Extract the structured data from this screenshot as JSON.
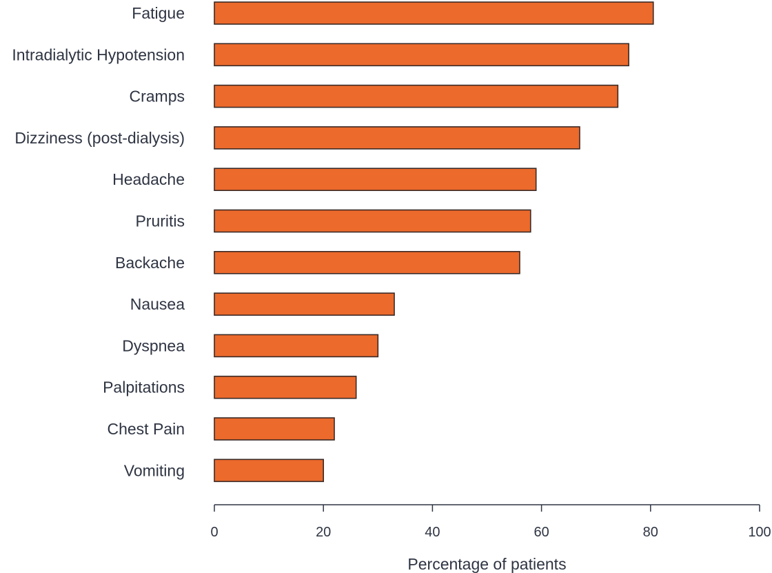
{
  "chart_data": {
    "type": "bar",
    "orientation": "horizontal",
    "categories": [
      "Fatigue",
      "Intradialytic Hypotension",
      "Cramps",
      "Dizziness (post-dialysis)",
      "Headache",
      "Pruritis",
      "Backache",
      "Nausea",
      "Dyspnea",
      "Palpitations",
      "Chest Pain",
      "Vomiting"
    ],
    "values": [
      80.5,
      76,
      74,
      67,
      59,
      58,
      56,
      33,
      30,
      26,
      22,
      20
    ],
    "xlabel": "Percentage of patients",
    "ylabel": "",
    "xlim": [
      0,
      100
    ],
    "xticks": [
      0,
      20,
      40,
      60,
      80,
      100
    ],
    "grid": false,
    "legend": "none",
    "bar_color": "#ec6a2c",
    "bar_edge_color": "#3a2a26",
    "text_color": "#2e3442"
  }
}
